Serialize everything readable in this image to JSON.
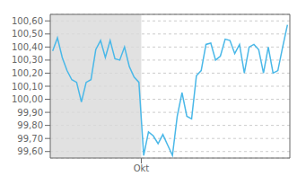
{
  "chart_data": {
    "type": "line",
    "x": [
      0,
      1,
      2,
      3,
      4,
      5,
      6,
      7,
      8,
      9,
      10,
      11,
      12,
      13,
      14,
      15,
      16,
      17,
      18,
      19,
      20,
      21,
      22,
      23,
      24,
      25,
      26,
      27,
      28,
      29,
      30,
      31,
      32,
      33,
      34,
      35,
      36,
      37,
      38,
      39,
      40,
      41,
      42,
      43,
      44,
      45,
      46,
      47,
      48,
      49
    ],
    "values": [
      100.37,
      100.47,
      100.32,
      100.22,
      100.15,
      100.13,
      99.98,
      100.13,
      100.15,
      100.38,
      100.45,
      100.32,
      100.45,
      100.31,
      100.3,
      100.4,
      100.25,
      100.17,
      100.13,
      99.57,
      99.75,
      99.72,
      99.66,
      99.73,
      99.65,
      99.57,
      99.87,
      100.05,
      99.87,
      99.85,
      100.18,
      100.22,
      100.42,
      100.43,
      100.3,
      100.33,
      100.46,
      100.45,
      100.35,
      100.42,
      100.2,
      100.4,
      100.42,
      100.38,
      100.2,
      100.4,
      100.2,
      100.22,
      100.4,
      100.57
    ],
    "color": "#4ab8e8",
    "xlim": [
      -0.5,
      49.5
    ],
    "xticks": [
      {
        "value": 18.5,
        "label": "Okt"
      }
    ],
    "ylim": [
      99.55,
      100.65
    ],
    "yticks": [
      {
        "value": 99.6,
        "label": "99,60"
      },
      {
        "value": 99.7,
        "label": "99,70"
      },
      {
        "value": 99.8,
        "label": "99,80"
      },
      {
        "value": 99.9,
        "label": "99,90"
      },
      {
        "value": 100.0,
        "label": "100,00"
      },
      {
        "value": 100.1,
        "label": "100,10"
      },
      {
        "value": 100.2,
        "label": "100,20"
      },
      {
        "value": 100.3,
        "label": "100,30"
      },
      {
        "value": 100.4,
        "label": "100,40"
      },
      {
        "value": 100.5,
        "label": "100,50"
      },
      {
        "value": 100.6,
        "label": "100,60"
      }
    ],
    "grid": true
  }
}
